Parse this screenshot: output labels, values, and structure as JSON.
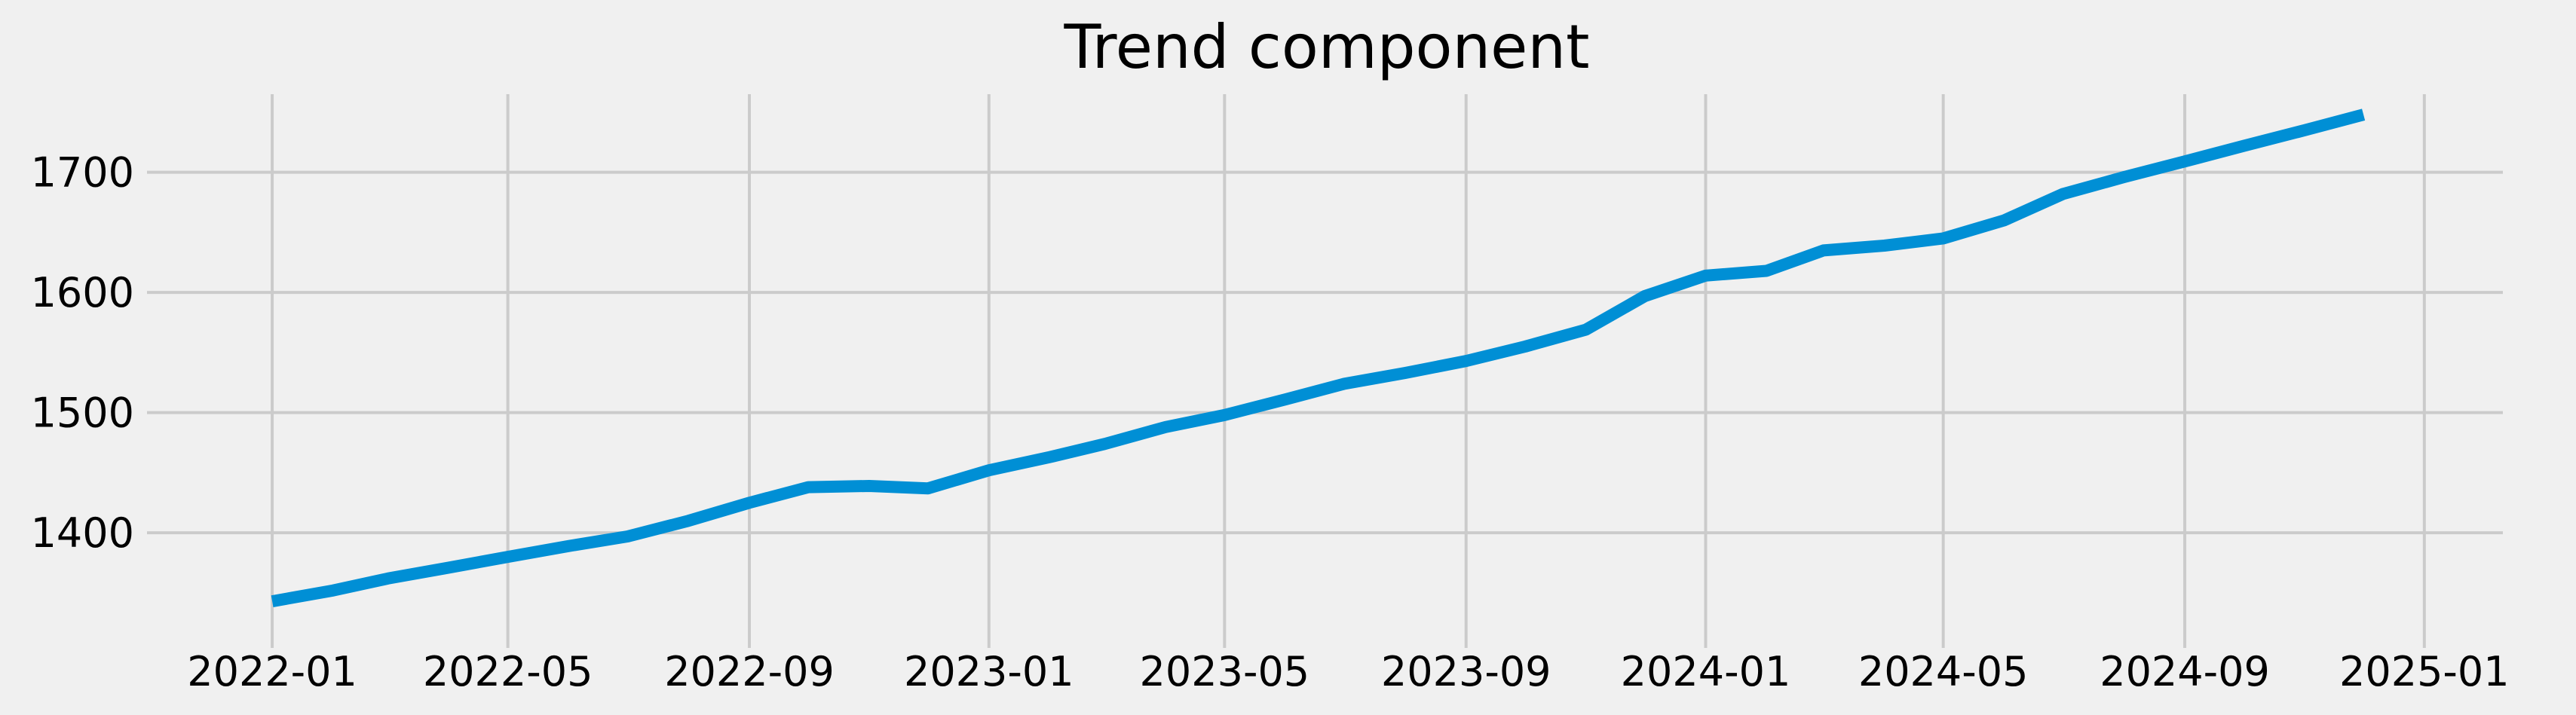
{
  "chart_data": {
    "type": "line",
    "title": "Trend component",
    "xlabel": "",
    "ylabel": "",
    "x_ticks": [
      "2022-01",
      "2022-05",
      "2022-09",
      "2023-01",
      "2023-05",
      "2023-09",
      "2024-01",
      "2024-05",
      "2024-09",
      "2025-01"
    ],
    "y_ticks": [
      1400,
      1500,
      1600,
      1700
    ],
    "xlim": [
      "2021-11-04",
      "2025-02-10"
    ],
    "ylim": [
      1323,
      1765
    ],
    "grid": true,
    "legend": "none",
    "colors": {
      "background": "#f0f0f0",
      "grid": "#cbcbcb",
      "line": "#008fd5"
    },
    "series": [
      {
        "color": "#008fd5",
        "x": [
          "2022-01-01",
          "2022-02-01",
          "2022-03-01",
          "2022-04-01",
          "2022-05-01",
          "2022-06-01",
          "2022-07-01",
          "2022-08-01",
          "2022-09-01",
          "2022-10-01",
          "2022-11-01",
          "2022-12-01",
          "2023-01-01",
          "2023-02-01",
          "2023-03-01",
          "2023-04-01",
          "2023-05-01",
          "2023-06-01",
          "2023-07-01",
          "2023-08-01",
          "2023-09-01",
          "2023-10-01",
          "2023-11-01",
          "2023-12-01",
          "2024-01-01",
          "2024-02-01",
          "2024-03-01",
          "2024-04-01",
          "2024-05-01",
          "2024-06-01",
          "2024-07-01",
          "2024-08-01",
          "2024-09-01",
          "2024-10-01",
          "2024-11-01",
          "2024-12-01"
        ],
        "values": [
          1343,
          1352,
          1362,
          1371,
          1380,
          1389,
          1397,
          1410,
          1425,
          1438,
          1439,
          1437,
          1452,
          1463,
          1474,
          1488,
          1498,
          1511,
          1524,
          1533,
          1543,
          1555,
          1569,
          1597,
          1614,
          1618,
          1635,
          1639,
          1645,
          1660,
          1682,
          1696,
          1709,
          1722,
          1735,
          1748
        ]
      }
    ]
  }
}
